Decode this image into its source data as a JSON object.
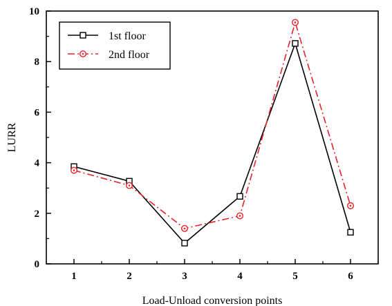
{
  "chart_data": {
    "type": "line",
    "title": "",
    "xlabel": "Load-Unload conversion points",
    "ylabel": "LURR",
    "x": [
      1,
      2,
      3,
      4,
      5,
      6
    ],
    "xticks": [
      "1",
      "2",
      "3",
      "4",
      "5",
      "6"
    ],
    "yticks": [
      "0",
      "2",
      "4",
      "6",
      "8",
      "10"
    ],
    "xlim": [
      0.5,
      6.5
    ],
    "ylim": [
      0,
      10
    ],
    "grid": false,
    "legend_position": "top-left",
    "series": [
      {
        "name": "1st floor",
        "values": [
          3.85,
          3.27,
          0.82,
          2.67,
          8.72,
          1.25
        ],
        "color": "#000000",
        "line_style": "solid",
        "marker": "open-square"
      },
      {
        "name": "2nd floor",
        "values": [
          3.7,
          3.1,
          1.4,
          1.9,
          9.55,
          2.3
        ],
        "color": "#e8202a",
        "line_style": "dash-dot",
        "marker": "open-circle-dot"
      }
    ]
  }
}
